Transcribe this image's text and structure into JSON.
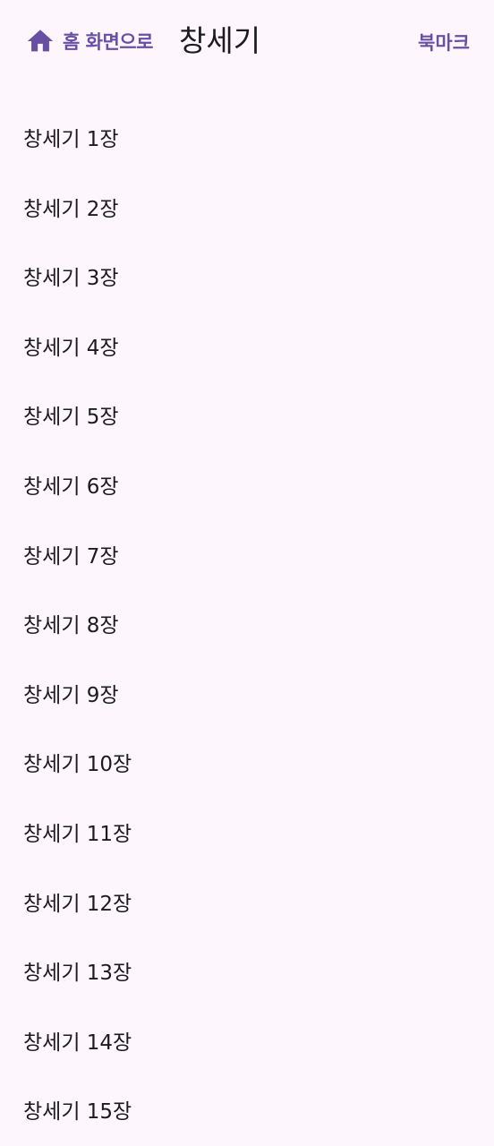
{
  "header": {
    "home_label": "홈 화면으로",
    "home_icon": "home-icon",
    "title": "창세기",
    "bookmark_label": "북마크",
    "accent_color": "#6750a4"
  },
  "chapters": [
    {
      "label": "창세기 1장"
    },
    {
      "label": "창세기 2장"
    },
    {
      "label": "창세기 3장"
    },
    {
      "label": "창세기 4장"
    },
    {
      "label": "창세기 5장"
    },
    {
      "label": "창세기 6장"
    },
    {
      "label": "창세기 7장"
    },
    {
      "label": "창세기 8장"
    },
    {
      "label": "창세기 9장"
    },
    {
      "label": "창세기 10장"
    },
    {
      "label": "창세기 11장"
    },
    {
      "label": "창세기 12장"
    },
    {
      "label": "창세기 13장"
    },
    {
      "label": "창세기 14장"
    },
    {
      "label": "창세기 15장"
    }
  ]
}
